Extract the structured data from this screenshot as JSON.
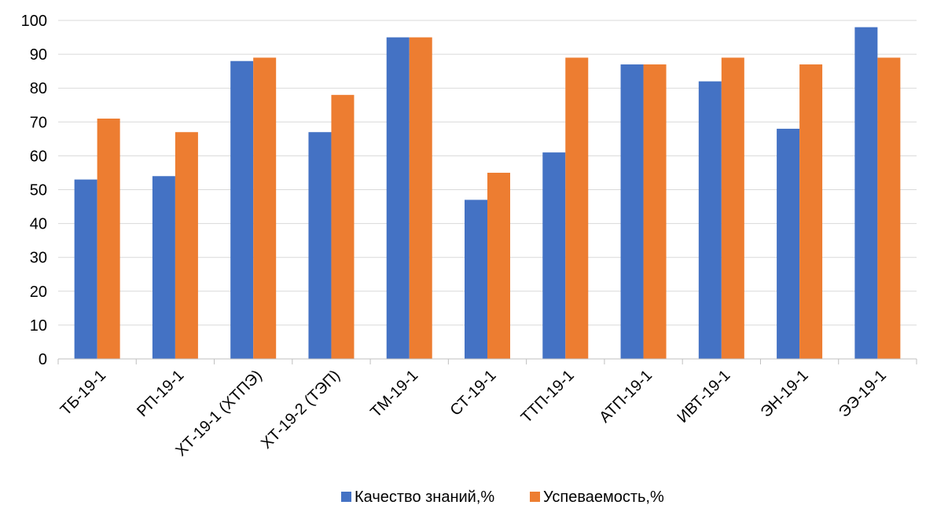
{
  "chart_data": {
    "type": "bar",
    "categories": [
      "ТБ-19-1",
      "РП-19-1",
      "ХТ-19-1 (ХТПЭ)",
      "ХТ-19-2 (ТЭП)",
      "ТМ-19-1",
      "СТ-19-1",
      "ТТП-19-1",
      "АТП-19-1",
      "ИВТ-19-1",
      "ЭН-19-1",
      "ЭЭ-19-1"
    ],
    "series": [
      {
        "name": "Качество знаний,%",
        "color": "#4472C4",
        "values": [
          53,
          54,
          88,
          67,
          95,
          47,
          61,
          87,
          82,
          68,
          98
        ]
      },
      {
        "name": "Успеваемость,%",
        "color": "#ED7D31",
        "values": [
          71,
          67,
          89,
          78,
          95,
          55,
          89,
          87,
          89,
          87,
          89
        ]
      }
    ],
    "ylim": [
      0,
      100
    ],
    "yticks": [
      0,
      10,
      20,
      30,
      40,
      50,
      60,
      70,
      80,
      90,
      100
    ],
    "grid": true,
    "legend_position": "bottom-center",
    "title": "",
    "xlabel": "",
    "ylabel": ""
  }
}
